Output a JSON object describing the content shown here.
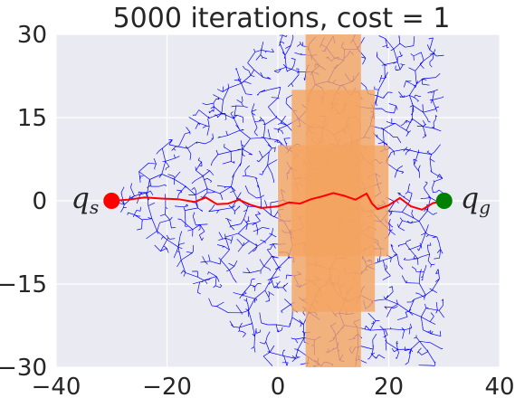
{
  "chart_data": {
    "type": "scatter",
    "title": "5000 iterations, cost $=1$",
    "title_text": "5000 iterations, cost ",
    "title_math": "= 1",
    "xlabel": "",
    "ylabel": "",
    "xlim": [
      -40,
      40
    ],
    "ylim": [
      -30,
      30
    ],
    "xticks": [
      -40,
      -20,
      0,
      20,
      40
    ],
    "yticks": [
      -30,
      -15,
      0,
      15,
      30
    ],
    "xtick_labels": [
      "−40",
      "−20",
      "0",
      "20",
      "40"
    ],
    "ytick_labels": [
      "−30",
      "−15",
      "0",
      "15",
      "30"
    ],
    "grid": true,
    "start": {
      "label": "q",
      "sub": "s",
      "x": -30,
      "y": 0,
      "color": "#ff0000"
    },
    "goal": {
      "label": "q",
      "sub": "g",
      "x": 30,
      "y": 0,
      "color": "#008000"
    },
    "obstacle": {
      "color": "#f4a460",
      "rects": [
        {
          "x0": 5,
          "x1": 15,
          "y0": -30,
          "y1": 30
        },
        {
          "x0": 2.5,
          "x1": 17.5,
          "y0": -20,
          "y1": 20
        },
        {
          "x0": 0,
          "x1": 20,
          "y0": -10,
          "y1": 10
        }
      ]
    },
    "tree": {
      "color": "#0000ff",
      "iterations": 5000
    },
    "path": {
      "color": "#ff0000",
      "points": [
        [
          -30,
          0
        ],
        [
          -27,
          0.2
        ],
        [
          -24,
          0.6
        ],
        [
          -21,
          0.4
        ],
        [
          -18,
          0.3
        ],
        [
          -15,
          -0.2
        ],
        [
          -13,
          0.6
        ],
        [
          -11,
          -0.6
        ],
        [
          -9,
          -0.5
        ],
        [
          -7,
          0.2
        ],
        [
          -5,
          -0.7
        ],
        [
          -3,
          -1.3
        ],
        [
          0,
          -1.0
        ],
        [
          2,
          -0.3
        ],
        [
          4,
          -0.5
        ],
        [
          6,
          0.3
        ],
        [
          8,
          0.8
        ],
        [
          10,
          1.4
        ],
        [
          12,
          0.9
        ],
        [
          14,
          0.2
        ],
        [
          16,
          1.3
        ],
        [
          17,
          -0.5
        ],
        [
          18,
          -1.5
        ],
        [
          20,
          -0.8
        ],
        [
          22,
          0.5
        ],
        [
          24,
          -1.0
        ],
        [
          26,
          -1.6
        ],
        [
          28,
          -0.4
        ],
        [
          30,
          0
        ]
      ]
    }
  }
}
